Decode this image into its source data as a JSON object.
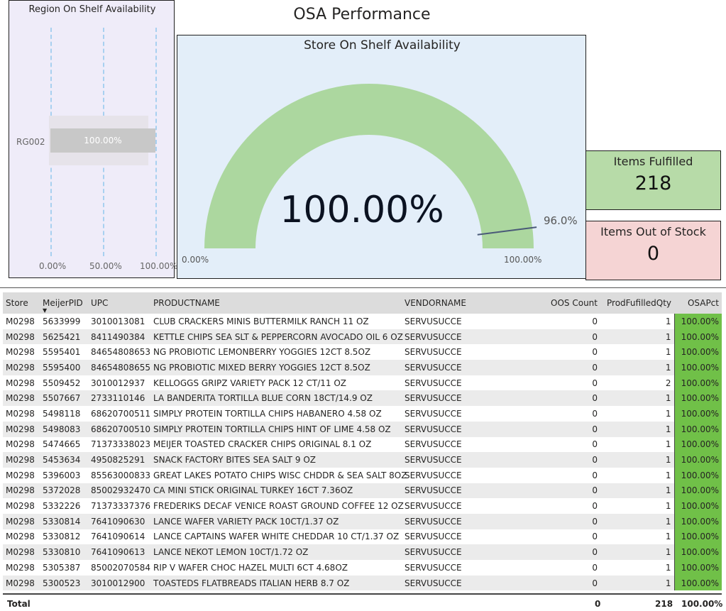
{
  "page_title": "OSA Performance",
  "region_chart": {
    "title": "Region On Shelf Availability",
    "category": "RG002",
    "bar_label": "100.00%",
    "value_pct": 100,
    "ticks": [
      "0.00%",
      "50.00%",
      "100.00%"
    ]
  },
  "gauge": {
    "title": "Store On Shelf Availability",
    "value_label": "100.00%",
    "value_pct": 100,
    "min_label": "0.00%",
    "max_label": "100.00%",
    "target_label": "96.0%",
    "target_pct": 96,
    "fill_color": "#acd79f"
  },
  "cards": {
    "fulfilled": {
      "label": "Items Fulfilled",
      "value": "218",
      "color": "#b7dba8"
    },
    "out_of_stock": {
      "label": "Items Out of Stock",
      "value": "0",
      "color": "#f5d4d4"
    }
  },
  "table": {
    "columns": [
      "Store",
      "MeijerPID",
      "UPC",
      "PRODUCTNAME",
      "VENDORNAME",
      "OOS Count",
      "ProdFufilledQty",
      "OSAPct"
    ],
    "sort_column": "MeijerPID",
    "rows": [
      [
        "M0298",
        "5633999",
        "3010013081",
        "CLUB CRACKERS MINIS BUTTERMILK RANCH 11 OZ",
        "SERVUSUCCE",
        "0",
        "1",
        "100.00%"
      ],
      [
        "M0298",
        "5625421",
        "8411490384",
        "KETTLE CHIPS SEA SLT & PEPPERCORN AVOCADO OIL 6 OZ",
        "SERVUSUCCE",
        "0",
        "1",
        "100.00%"
      ],
      [
        "M0298",
        "5595401",
        "84654808653",
        "NG PROBIOTIC LEMONBERRY YOGGIES 12CT 8.5OZ",
        "SERVUSUCCE",
        "0",
        "1",
        "100.00%"
      ],
      [
        "M0298",
        "5595400",
        "84654808655",
        "NG PROBIOTIC MIXED BERRY YOGGIES 12CT 8.5OZ",
        "SERVUSUCCE",
        "0",
        "1",
        "100.00%"
      ],
      [
        "M0298",
        "5509452",
        "3010012937",
        "KELLOGGS GRIPZ VARIETY PACK 12 CT/11 OZ",
        "SERVUSUCCE",
        "0",
        "2",
        "100.00%"
      ],
      [
        "M0298",
        "5507667",
        "2733110146",
        "LA BANDERITA TORTILLA BLUE CORN 18CT/14.9 OZ",
        "SERVUSUCCE",
        "0",
        "1",
        "100.00%"
      ],
      [
        "M0298",
        "5498118",
        "68620700511",
        "SIMPLY PROTEIN TORTILLA CHIPS HABANERO 4.58 OZ",
        "SERVUSUCCE",
        "0",
        "1",
        "100.00%"
      ],
      [
        "M0298",
        "5498083",
        "68620700510",
        "SIMPLY PROTEIN TORTILLA CHIPS HINT OF LIME 4.58 OZ",
        "SERVUSUCCE",
        "0",
        "1",
        "100.00%"
      ],
      [
        "M0298",
        "5474665",
        "71373338023",
        "MEIJER TOASTED CRACKER CHIPS ORIGINAL 8.1 OZ",
        "SERVUSUCCE",
        "0",
        "1",
        "100.00%"
      ],
      [
        "M0298",
        "5453634",
        "4950825291",
        "SNACK FACTORY BITES SEA SALT 9 OZ",
        "SERVUSUCCE",
        "0",
        "1",
        "100.00%"
      ],
      [
        "M0298",
        "5396003",
        "85563000833",
        "GREAT LAKES POTATO CHIPS WISC CHDDR & SEA SALT 8OZ",
        "SERVUSUCCE",
        "0",
        "1",
        "100.00%"
      ],
      [
        "M0298",
        "5372028",
        "85002932470",
        "CA MINI STICK ORIGINAL TURKEY 16CT 7.36OZ",
        "SERVUSUCCE",
        "0",
        "1",
        "100.00%"
      ],
      [
        "M0298",
        "5332226",
        "71373337376",
        "FREDERIKS DECAF VENICE ROAST GROUND COFFEE 12 OZ",
        "SERVUSUCCE",
        "0",
        "1",
        "100.00%"
      ],
      [
        "M0298",
        "5330814",
        "7641090630",
        "LANCE WAFER VARIETY PACK 10CT/1.37 OZ",
        "SERVUSUCCE",
        "0",
        "1",
        "100.00%"
      ],
      [
        "M0298",
        "5330812",
        "7641090614",
        "LANCE CAPTAINS WAFER WHITE CHEDDAR 10 CT/1.37 OZ",
        "SERVUSUCCE",
        "0",
        "1",
        "100.00%"
      ],
      [
        "M0298",
        "5330810",
        "7641090613",
        "LANCE NEKOT LEMON 10CT/1.72 OZ",
        "SERVUSUCCE",
        "0",
        "1",
        "100.00%"
      ],
      [
        "M0298",
        "5305387",
        "85002070584",
        "RIP V WAFER CHOC HAZEL MULTI 6CT 4.68OZ",
        "SERVUSUCCE",
        "0",
        "1",
        "100.00%"
      ],
      [
        "M0298",
        "5300523",
        "3010012900",
        "TOASTEDS FLATBREADS ITALIAN HERB 8.7 OZ",
        "SERVUSUCCE",
        "0",
        "1",
        "100.00%"
      ]
    ],
    "total": {
      "label": "Total",
      "oos": "0",
      "qty": "218",
      "pct": "100.00%"
    },
    "osa_color": "#70c048"
  }
}
